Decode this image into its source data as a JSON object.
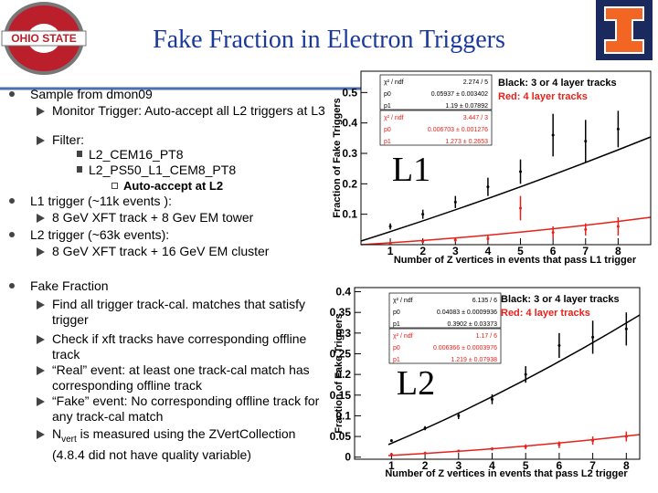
{
  "title": "Fake Fraction in Electron Triggers",
  "logo_text": "OHIO STATE",
  "bullets": [
    {
      "text": "Sample from dmon09",
      "children": [
        {
          "text": "Monitor Trigger: Auto-accept all L2 triggers at L3"
        },
        {
          "text": "Filter:",
          "children": [
            {
              "text": "L2_CEM16_PT8"
            },
            {
              "text": "L2_PS50_L1_CEM8_PT8",
              "children": [
                {
                  "text": "Auto-accept at L2"
                }
              ]
            }
          ]
        }
      ]
    },
    {
      "text": "L1 trigger (~11k events ):",
      "children": [
        {
          "text": "8 GeV XFT track + 8 Gev EM tower"
        }
      ]
    },
    {
      "text": "L2 trigger (~63k events):",
      "children": [
        {
          "text": "8 GeV XFT track + 16 GeV EM cluster"
        }
      ]
    },
    {
      "text": "Fake Fraction",
      "children": [
        {
          "text": "Find all trigger track-cal. matches that satisfy trigger"
        },
        {
          "text": "Check if xft tracks have corresponding offline track"
        },
        {
          "text": "“Real” event: at least one track-cal match has corresponding offline track"
        },
        {
          "text": "“Fake” event: No corresponding offline track for any track-cal match"
        },
        {
          "text": "N",
          "subscript": "vert",
          "rest": " is measured using the ZVertCollection (4.8.4 did not have quality variable)"
        }
      ]
    }
  ],
  "chart_data": [
    {
      "type": "scatter",
      "label": "L1",
      "x_label": "Number of Z vertices in events that pass L1 trigger",
      "y_label": "Fraction of Fake Triggers",
      "x": [
        1,
        2,
        3,
        4,
        5,
        6,
        7,
        8
      ],
      "series": [
        {
          "name": "Black: 3 or 4 layer tracks",
          "color": "#000000",
          "values": [
            0.06,
            0.1,
            0.14,
            0.19,
            0.24,
            0.36,
            0.34,
            0.38
          ],
          "errors": [
            0.01,
            0.015,
            0.02,
            0.03,
            0.04,
            0.07,
            0.07,
            0.06
          ]
        },
        {
          "name": "Red: 4 layer tracks",
          "color": "#e8201a",
          "values": [
            0.005,
            0.01,
            0.015,
            0.02,
            0.12,
            0.04,
            0.05,
            0.06
          ],
          "errors": [
            0.002,
            0.004,
            0.006,
            0.01,
            0.04,
            0.02,
            0.02,
            0.03
          ]
        }
      ],
      "stats": [
        {
          "color": "#000000",
          "rows": [
            [
              "χ² / ndf",
              "2.274 / 5"
            ],
            [
              "p0",
              "0.05937 ± 0.003402"
            ],
            [
              "p1",
              "1.19 ± 0.07892"
            ]
          ]
        },
        {
          "color": "#e8201a",
          "rows": [
            [
              "χ² / ndf",
              "3.447 / 3"
            ],
            [
              "p0",
              "0.006703 ± 0.001276"
            ],
            [
              "p1",
              "1.273 ± 0.2653"
            ]
          ]
        }
      ],
      "xlim": [
        0.1,
        9
      ],
      "ylim": [
        0,
        0.57
      ],
      "xticks": [
        1,
        2,
        3,
        4,
        5,
        6,
        7,
        8
      ],
      "yticks": [
        0.1,
        0.2,
        0.3,
        0.4,
        0.5
      ]
    },
    {
      "type": "scatter",
      "label": "L2",
      "x_label": "Number of Z vertices in events that pass L2 trigger",
      "y_label": "Fraction of Fake Triggers",
      "x": [
        1,
        2,
        3,
        4,
        5,
        6,
        7,
        8
      ],
      "series": [
        {
          "name": "Black: 3 or 4 layer tracks",
          "color": "#000000",
          "values": [
            0.04,
            0.07,
            0.1,
            0.14,
            0.2,
            0.27,
            0.29,
            0.31
          ],
          "errors": [
            0.003,
            0.005,
            0.008,
            0.012,
            0.02,
            0.03,
            0.04,
            0.04
          ]
        },
        {
          "name": "Red: 4 layer tracks",
          "color": "#e8201a",
          "values": [
            0.007,
            0.01,
            0.015,
            0.02,
            0.025,
            0.03,
            0.04,
            0.05
          ],
          "errors": [
            0.001,
            0.002,
            0.003,
            0.004,
            0.006,
            0.008,
            0.01,
            0.012
          ]
        }
      ],
      "stats": [
        {
          "color": "#000000",
          "rows": [
            [
              "χ² / ndf",
              "6.135 / 6"
            ],
            [
              "p0",
              "0.04083 ± 0.0009936"
            ],
            [
              "p1",
              "0.3902 ± 0.03373"
            ]
          ]
        },
        {
          "color": "#e8201a",
          "rows": [
            [
              "χ² / ndf",
              "1.17 / 6"
            ],
            [
              "p0",
              "0.006366 ± 0.0003976"
            ],
            [
              "p1",
              "1.219 ± 0.07938"
            ]
          ]
        }
      ],
      "xlim": [
        -0.1,
        8.4
      ],
      "ylim": [
        -0.005,
        0.41
      ],
      "xticks": [
        1,
        2,
        3,
        4,
        5,
        6,
        7,
        8
      ],
      "yticks": [
        0,
        0.05,
        0.1,
        0.15,
        0.2,
        0.25,
        0.3,
        0.35,
        0.4
      ]
    }
  ]
}
